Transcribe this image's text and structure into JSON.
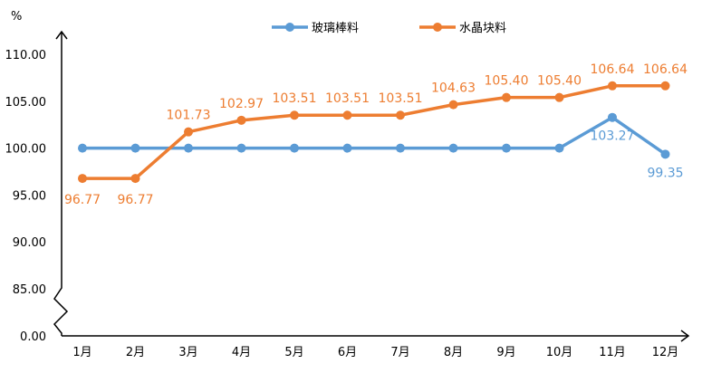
{
  "chart_data": {
    "type": "line",
    "unit_label": "%",
    "categories": [
      "1月",
      "2月",
      "3月",
      "4月",
      "5月",
      "6月",
      "7月",
      "8月",
      "9月",
      "10月",
      "11月",
      "12月"
    ],
    "y_tick_labels": [
      "0.00",
      "85.00",
      "90.00",
      "95.00",
      "100.00",
      "105.00",
      "110.00"
    ],
    "ylim": [
      85,
      110
    ],
    "axis_break": true,
    "grid": false,
    "legend_position": "top",
    "series": [
      {
        "name": "玻璃棒料",
        "color": "#5B9BD5",
        "values": [
          100,
          100,
          100,
          100,
          100,
          100,
          100,
          100,
          100,
          100,
          103.27,
          99.35
        ],
        "data_labels": [
          "",
          "",
          "",
          "",
          "",
          "",
          "",
          "",
          "",
          "",
          "103.27",
          "99.35"
        ]
      },
      {
        "name": "水晶块料",
        "color": "#ED7D31",
        "values": [
          96.77,
          96.77,
          101.73,
          102.97,
          103.51,
          103.51,
          103.51,
          104.63,
          105.4,
          105.4,
          106.64,
          106.64
        ],
        "data_labels": [
          "96.77",
          "96.77",
          "101.73",
          "102.97",
          "103.51",
          "103.51",
          "103.51",
          "104.63",
          "105.40",
          "105.40",
          "106.64",
          "106.64"
        ]
      }
    ]
  }
}
